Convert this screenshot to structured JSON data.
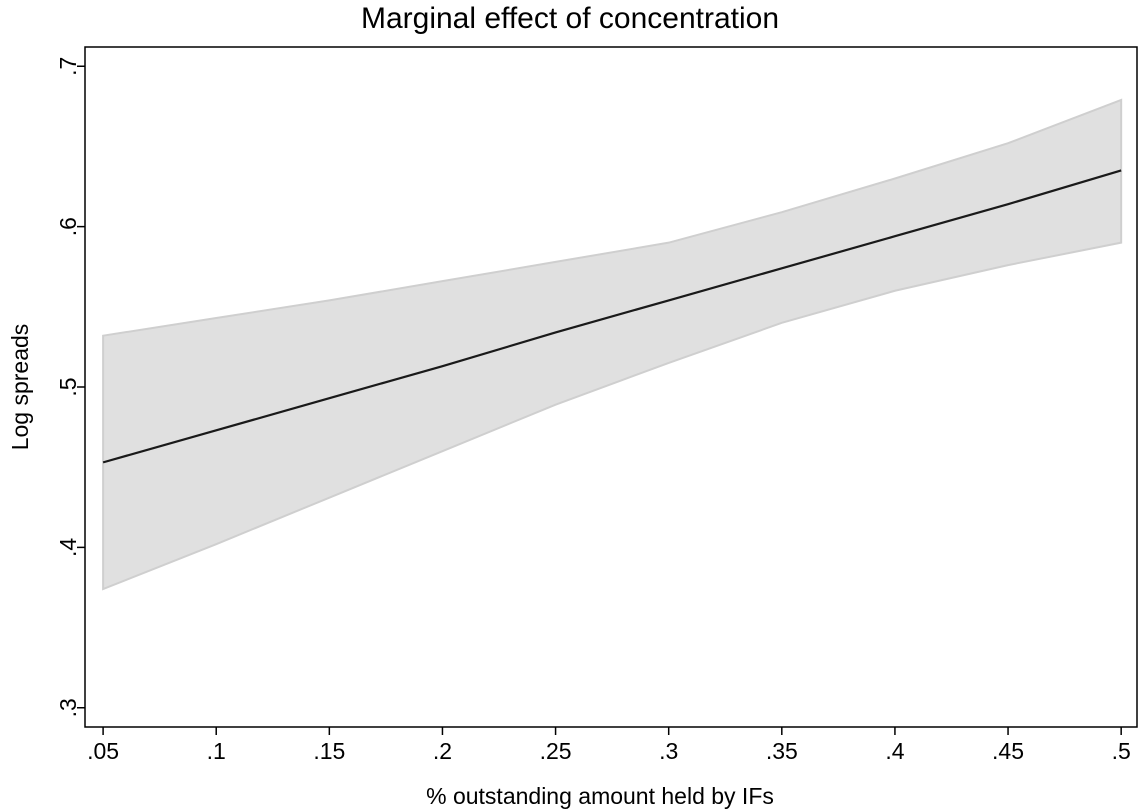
{
  "chart_data": {
    "type": "line-band",
    "title": "Marginal effect of concentration",
    "x_label": "% outstanding amount held by IFs",
    "y_label": "Log spreads",
    "x": [
      0.05,
      0.1,
      0.15,
      0.2,
      0.25,
      0.3,
      0.35,
      0.4,
      0.45,
      0.5
    ],
    "values": [
      0.453,
      0.473,
      0.493,
      0.513,
      0.534,
      0.554,
      0.574,
      0.594,
      0.614,
      0.635
    ],
    "lower": [
      0.374,
      0.402,
      0.431,
      0.46,
      0.489,
      0.515,
      0.54,
      0.56,
      0.576,
      0.59
    ],
    "upper": [
      0.532,
      0.543,
      0.554,
      0.566,
      0.578,
      0.59,
      0.609,
      0.63,
      0.652,
      0.679
    ],
    "line_color": "#1a1a1a",
    "band_color": "#e0e0e0",
    "band_edge_color": "#cfcfcf",
    "xlim": [
      0.042,
      0.507
    ],
    "ylim": [
      0.288,
      0.712
    ],
    "xticks": [
      {
        "value": 0.05,
        "label": ".05"
      },
      {
        "value": 0.1,
        "label": ".1"
      },
      {
        "value": 0.15,
        "label": ".15"
      },
      {
        "value": 0.2,
        "label": ".2"
      },
      {
        "value": 0.25,
        "label": ".25"
      },
      {
        "value": 0.3,
        "label": ".3"
      },
      {
        "value": 0.35,
        "label": ".35"
      },
      {
        "value": 0.4,
        "label": ".4"
      },
      {
        "value": 0.45,
        "label": ".45"
      },
      {
        "value": 0.5,
        "label": ".5"
      }
    ],
    "yticks": [
      {
        "value": 0.3,
        "label": ".3"
      },
      {
        "value": 0.4,
        "label": ".4"
      },
      {
        "value": 0.5,
        "label": ".5"
      },
      {
        "value": 0.6,
        "label": ".6"
      },
      {
        "value": 0.7,
        "label": ".7"
      }
    ],
    "grid": false
  }
}
